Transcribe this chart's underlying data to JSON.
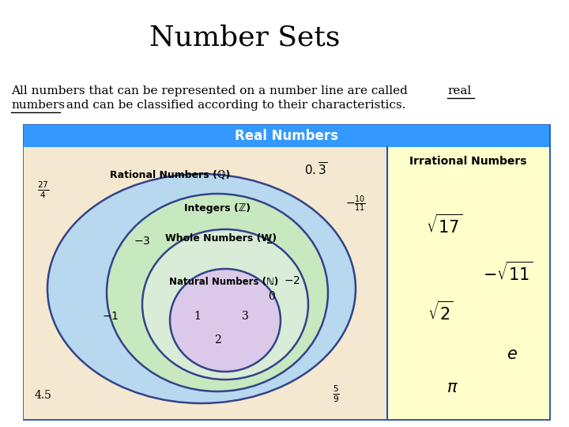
{
  "title": "Number Sets",
  "bg_color": "#ffffff",
  "header_color": "#3399ff",
  "header_text": "Real Numbers",
  "rational_label": "Rational Numbers (ℚ)",
  "integers_label": "Integers (ℤ)",
  "whole_label": "Whole Numbers (W̲)",
  "natural_label": "Natural Numbers (ℕ)",
  "irrational_label": "Irrational Numbers",
  "outer_bg": "#f5e8d0",
  "rational_ellipse_fill": "#b8d8f0",
  "integers_ellipse_fill": "#c8e8c0",
  "whole_ellipse_fill": "#d8ecd8",
  "natural_ellipse_fill": "#dcc8e8",
  "irrational_bg": "#ffffcc",
  "ellipse_edge": "#334488",
  "header_edge": "#2255bb",
  "title_fontsize": 26,
  "subtitle_fontsize": 11,
  "label_fontsize": 9,
  "number_fontsize": 10
}
